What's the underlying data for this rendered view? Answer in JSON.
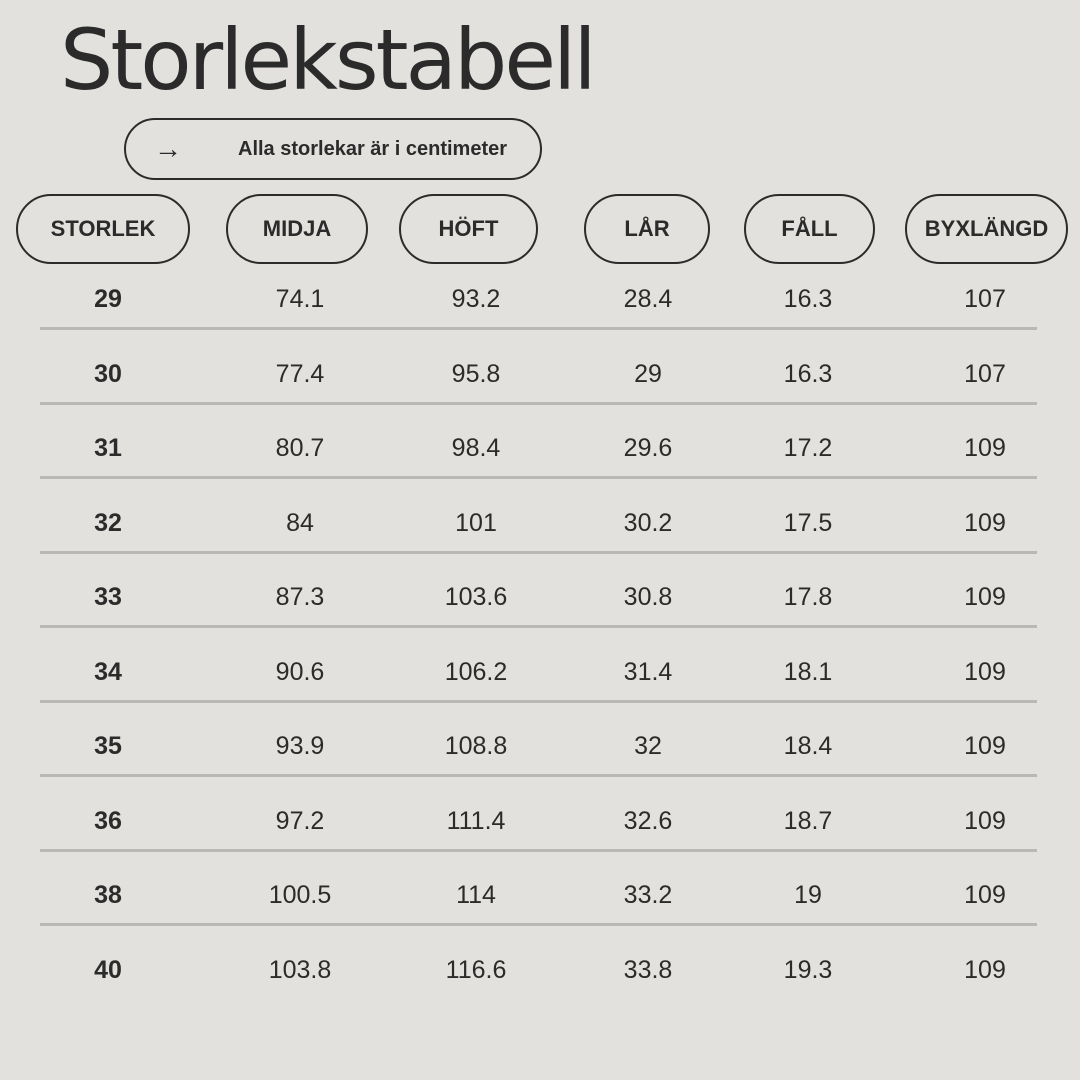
{
  "title": "Storlekstabell",
  "note": {
    "icon": "arrow-right-icon",
    "arrow": "→",
    "text": "Alla storlekar är i centimeter"
  },
  "headers": [
    "STORLEK",
    "MIDJA",
    "HÖFT",
    "LÅR",
    "FÅLL",
    "BYXLÄNGD"
  ],
  "rows": [
    [
      "29",
      "74.1",
      "93.2",
      "28.4",
      "16.3",
      "107"
    ],
    [
      "30",
      "77.4",
      "95.8",
      "29",
      "16.3",
      "107"
    ],
    [
      "31",
      "80.7",
      "98.4",
      "29.6",
      "17.2",
      "109"
    ],
    [
      "32",
      "84",
      "101",
      "30.2",
      "17.5",
      "109"
    ],
    [
      "33",
      "87.3",
      "103.6",
      "30.8",
      "17.8",
      "109"
    ],
    [
      "34",
      "90.6",
      "106.2",
      "31.4",
      "18.1",
      "109"
    ],
    [
      "35",
      "93.9",
      "108.8",
      "32",
      "18.4",
      "109"
    ],
    [
      "36",
      "97.2",
      "111.4",
      "32.6",
      "18.7",
      "109"
    ],
    [
      "38",
      "100.5",
      "114",
      "33.2",
      "19",
      "109"
    ],
    [
      "40",
      "103.8",
      "116.6",
      "33.8",
      "19.3",
      "109"
    ]
  ]
}
